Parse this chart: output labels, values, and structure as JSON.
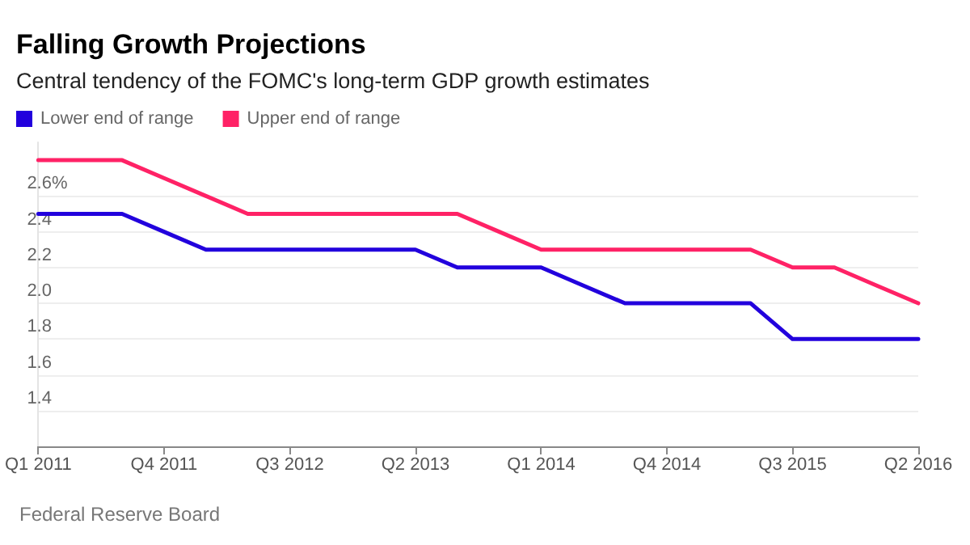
{
  "chart_data": {
    "type": "line",
    "title": "Falling Growth Projections",
    "subtitle": "Central tendency of the FOMC's long-term GDP growth estimates",
    "categories": [
      "Q1 2011",
      null,
      null,
      "Q4 2011",
      null,
      null,
      "Q3 2012",
      null,
      null,
      "Q2 2013",
      null,
      null,
      "Q1 2014",
      null,
      null,
      "Q4 2014",
      null,
      null,
      "Q3 2015",
      null,
      null,
      "Q2 2016"
    ],
    "series": [
      {
        "name": "Lower end of range",
        "color": "#2200dd",
        "values": [
          2.5,
          2.5,
          2.5,
          2.4,
          2.3,
          2.3,
          2.3,
          2.3,
          2.3,
          2.3,
          2.2,
          2.2,
          2.2,
          2.1,
          2.0,
          2.0,
          2.0,
          2.0,
          1.8,
          1.8,
          1.8,
          1.8
        ]
      },
      {
        "name": "Upper end of range",
        "color": "#ff2266",
        "values": [
          2.8,
          2.8,
          2.8,
          2.7,
          2.6,
          2.5,
          2.5,
          2.5,
          2.5,
          2.5,
          2.5,
          2.4,
          2.3,
          2.3,
          2.3,
          2.3,
          2.3,
          2.3,
          2.2,
          2.2,
          2.1,
          2.0
        ]
      }
    ],
    "ylim": [
      1.2,
      2.9
    ],
    "yticks": [
      1.4,
      1.6,
      1.8,
      {
        "value": 2.0,
        "label": "2.0"
      },
      2.2,
      2.4,
      {
        "value": 2.6,
        "label": "2.6%"
      }
    ],
    "grid": "y",
    "legend": "top left",
    "marker": "none",
    "line_style": "solid",
    "annotations": [
      "Federal Reserve Board"
    ]
  }
}
